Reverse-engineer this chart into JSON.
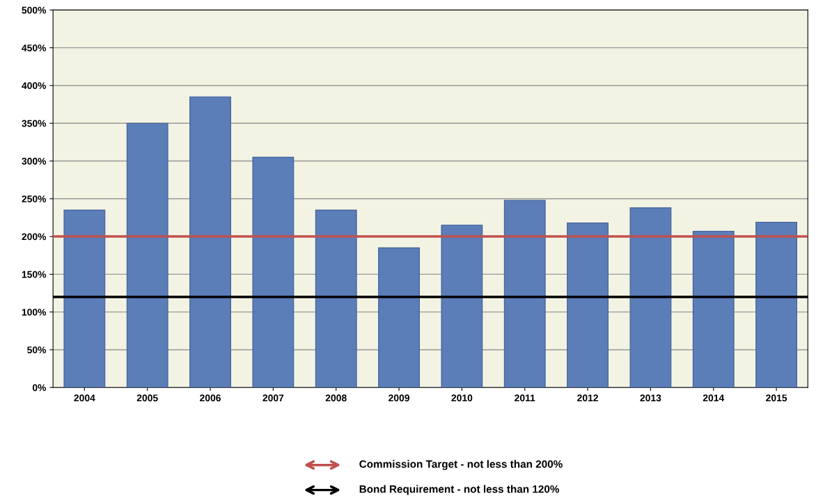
{
  "chart_data": {
    "type": "bar",
    "categories": [
      "2004",
      "2005",
      "2006",
      "2007",
      "2008",
      "2009",
      "2010",
      "2011",
      "2012",
      "2013",
      "2014",
      "2015"
    ],
    "series": [
      {
        "color": "#5b7db8",
        "values": [
          235,
          350,
          385,
          305,
          235,
          185,
          215,
          248,
          218,
          238,
          207,
          219
        ]
      }
    ],
    "ylim": [
      0,
      500
    ],
    "yticks": [
      {
        "value": 0,
        "label": "0%"
      },
      {
        "value": 50,
        "label": "50%"
      },
      {
        "value": 100,
        "label": "100%"
      },
      {
        "value": 150,
        "label": "150%"
      },
      {
        "value": 200,
        "label": "200%"
      },
      {
        "value": 250,
        "label": "250%"
      },
      {
        "value": 300,
        "label": "300%"
      },
      {
        "value": 350,
        "label": "350%"
      },
      {
        "value": 400,
        "label": "400%"
      },
      {
        "value": 450,
        "label": "450%"
      },
      {
        "value": 500,
        "label": "500%"
      }
    ],
    "grid": "y",
    "legend": "bottom",
    "ref_lines": [
      {
        "axis": "y",
        "value": 200,
        "label": "Commission Target - not less than 200%",
        "color": "#c0504d"
      },
      {
        "axis": "y",
        "value": 120,
        "label": "Bond Requirement - not less than 120%",
        "color": "#000000"
      }
    ]
  }
}
